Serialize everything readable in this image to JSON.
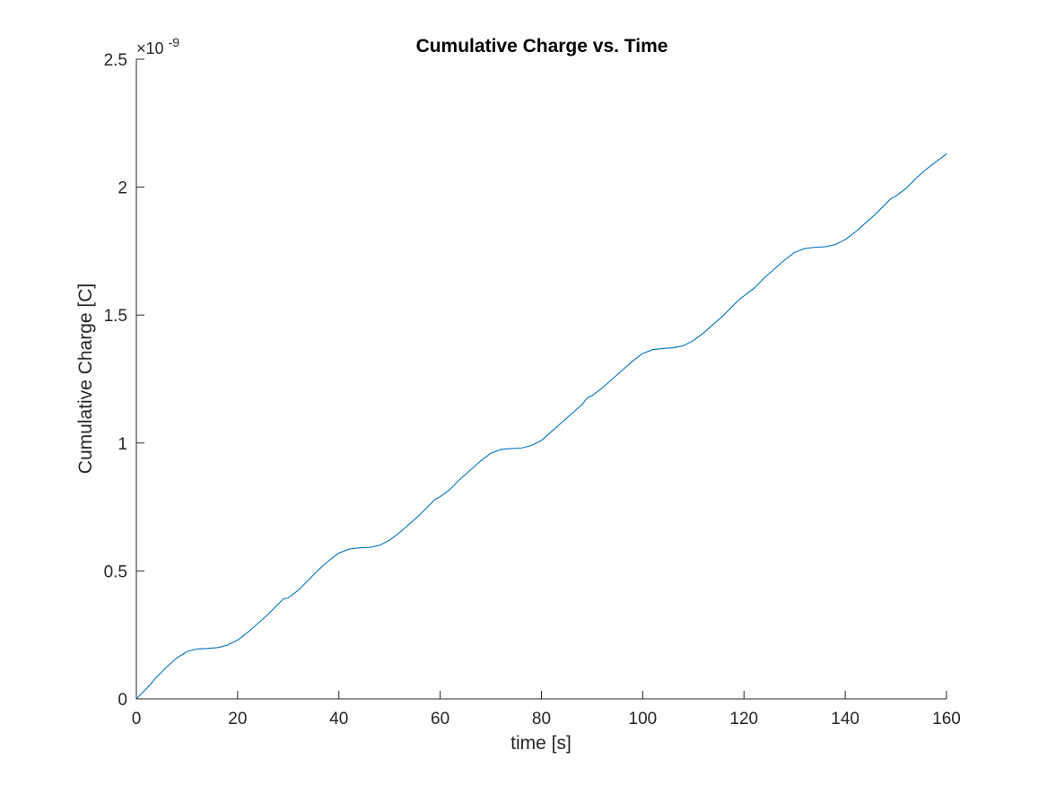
{
  "chart_data": {
    "type": "line",
    "title": "Cumulative Charge vs. Time",
    "xlabel": "time [s]",
    "ylabel": "Cumulative Charge [C]",
    "y_exponent_label": "×10",
    "y_exponent_power": "-9",
    "xlim": [
      0,
      160
    ],
    "ylim": [
      0,
      2.5
    ],
    "xticks": [
      0,
      20,
      40,
      60,
      80,
      100,
      120,
      140,
      160
    ],
    "xtick_labels": [
      "0",
      "20",
      "40",
      "60",
      "80",
      "100",
      "120",
      "140",
      "160"
    ],
    "yticks": [
      0,
      0.5,
      1,
      1.5,
      2,
      2.5
    ],
    "ytick_labels": [
      "0",
      "0.5",
      "1",
      "1.5",
      "2",
      "2.5"
    ],
    "grid": false,
    "line_color": "#0072BD",
    "axis_color": "#262626",
    "series": [
      {
        "x": [
          0,
          2,
          4,
          6,
          8,
          10,
          12,
          14,
          16,
          18,
          20,
          22,
          24,
          26,
          28,
          29,
          30,
          32,
          34,
          36,
          38,
          40,
          42,
          44,
          46,
          48,
          50,
          52,
          54,
          56,
          58,
          59,
          60,
          62,
          64,
          66,
          68,
          70,
          72,
          74,
          76,
          78,
          80,
          82,
          84,
          86,
          88,
          89,
          90,
          92,
          94,
          96,
          98,
          100,
          102,
          104,
          106,
          108,
          110,
          112,
          114,
          116,
          118,
          119,
          120,
          122,
          124,
          126,
          128,
          130,
          132,
          134,
          136,
          138,
          140,
          142,
          144,
          146,
          148,
          149,
          150,
          152,
          154,
          156,
          158,
          160
        ],
        "y": [
          0,
          0.04,
          0.085,
          0.125,
          0.16,
          0.185,
          0.195,
          0.197,
          0.2,
          0.21,
          0.23,
          0.26,
          0.295,
          0.33,
          0.37,
          0.39,
          0.395,
          0.425,
          0.465,
          0.505,
          0.54,
          0.57,
          0.585,
          0.59,
          0.592,
          0.6,
          0.62,
          0.65,
          0.685,
          0.72,
          0.76,
          0.78,
          0.79,
          0.82,
          0.86,
          0.895,
          0.93,
          0.96,
          0.975,
          0.978,
          0.98,
          0.99,
          1.01,
          1.045,
          1.08,
          1.115,
          1.15,
          1.175,
          1.185,
          1.215,
          1.25,
          1.285,
          1.32,
          1.35,
          1.365,
          1.37,
          1.372,
          1.38,
          1.4,
          1.43,
          1.465,
          1.5,
          1.54,
          1.56,
          1.575,
          1.605,
          1.645,
          1.68,
          1.715,
          1.745,
          1.76,
          1.765,
          1.767,
          1.775,
          1.795,
          1.825,
          1.86,
          1.895,
          1.935,
          1.955,
          1.965,
          1.995,
          2.035,
          2.07,
          2.1,
          2.13
        ]
      }
    ]
  }
}
